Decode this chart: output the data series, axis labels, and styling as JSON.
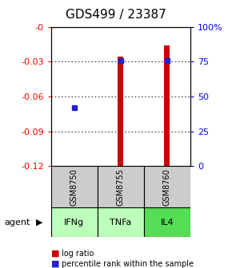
{
  "title": "GDS499 / 23387",
  "samples": [
    "GSM8750",
    "GSM8755",
    "GSM8760"
  ],
  "agents": [
    "IFNg",
    "TNFa",
    "IL4"
  ],
  "log_ratios": [
    -0.121,
    -0.026,
    -0.016
  ],
  "percentile_ranks": [
    42,
    76,
    76
  ],
  "ylim_left": [
    -0.12,
    0.0
  ],
  "ylim_right": [
    0,
    100
  ],
  "yticks_left": [
    -0.12,
    -0.09,
    -0.06,
    -0.03,
    0.0
  ],
  "yticks_right": [
    0,
    25,
    50,
    75,
    100
  ],
  "ytick_labels_left": [
    "-0.12",
    "-0.09",
    "-0.06",
    "-0.03",
    "-0"
  ],
  "ytick_labels_right": [
    "0",
    "25",
    "50",
    "75",
    "100%"
  ],
  "bar_color": "#cc0000",
  "dot_color": "#2222cc",
  "grid_color": "#000000",
  "sample_box_color": "#cccccc",
  "agent_colors": [
    "#bbffbb",
    "#bbffbb",
    "#55dd55"
  ],
  "legend_bar_color": "#cc0000",
  "legend_dot_color": "#2222cc",
  "background_color": "#ffffff",
  "title_fontsize": 11,
  "tick_fontsize": 8,
  "label_fontsize": 8,
  "bar_width": 0.12
}
